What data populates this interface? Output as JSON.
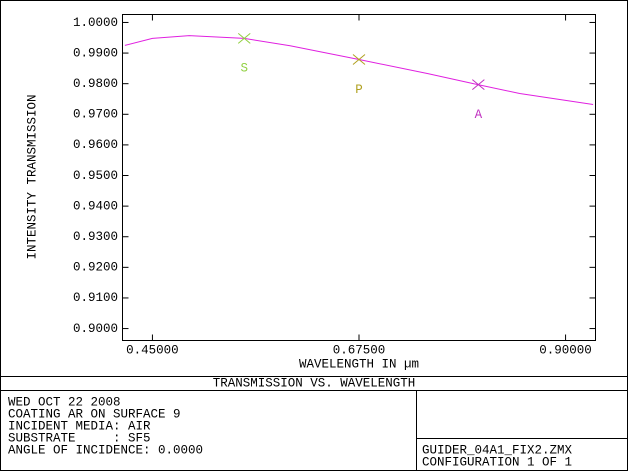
{
  "chart_data": {
    "type": "line",
    "title": "TRANSMISSION VS. WAVELENGTH",
    "xlabel": "WAVELENGTH IN µm",
    "ylabel": "INTENSITY TRANSMISSION",
    "x": [
      0.42,
      0.45,
      0.49,
      0.55,
      0.6,
      0.675,
      0.75,
      0.8,
      0.85,
      0.93
    ],
    "values": [
      0.9925,
      0.9948,
      0.9957,
      0.9948,
      0.9924,
      0.9879,
      0.9833,
      0.98,
      0.9768,
      0.9732
    ],
    "color": "#e020e0",
    "xlim": [
      0.4174,
      0.9326
    ],
    "ylim": [
      0.8961,
      1.0026
    ],
    "xticks": [
      {
        "value": 0.45,
        "label": "0.45000"
      },
      {
        "value": 0.675,
        "label": "0.67500"
      },
      {
        "value": 0.9,
        "label": "0.90000"
      }
    ],
    "yticks": [
      {
        "value": 0.9,
        "label": "0.9000"
      },
      {
        "value": 0.91,
        "label": "0.9100"
      },
      {
        "value": 0.92,
        "label": "0.9200"
      },
      {
        "value": 0.93,
        "label": "0.9300"
      },
      {
        "value": 0.94,
        "label": "0.9400"
      },
      {
        "value": 0.95,
        "label": "0.9500"
      },
      {
        "value": 0.96,
        "label": "0.9600"
      },
      {
        "value": 0.97,
        "label": "0.9700"
      },
      {
        "value": 0.98,
        "label": "0.9800"
      },
      {
        "value": 0.99,
        "label": "0.9900"
      },
      {
        "value": 1.0,
        "label": "1.0000"
      }
    ],
    "markers": [
      {
        "label": "S",
        "x": 0.55,
        "y": 0.9948,
        "color": "#90d040"
      },
      {
        "label": "P",
        "x": 0.675,
        "y": 0.9879,
        "color": "#b0a020"
      },
      {
        "label": "A",
        "x": 0.805,
        "y": 0.9797,
        "color": "#c030c0"
      }
    ],
    "info_lines": [
      "WED OCT 22 2008",
      "COATING AR ON SURFACE 9",
      "INCIDENT MEDIA: AIR",
      "SUBSTRATE     : SF5",
      "ANGLE OF INCIDENCE: 0.0000"
    ],
    "file": "GUIDER_04A1_FIX2.ZMX",
    "configuration": "CONFIGURATION 1 OF 1"
  }
}
